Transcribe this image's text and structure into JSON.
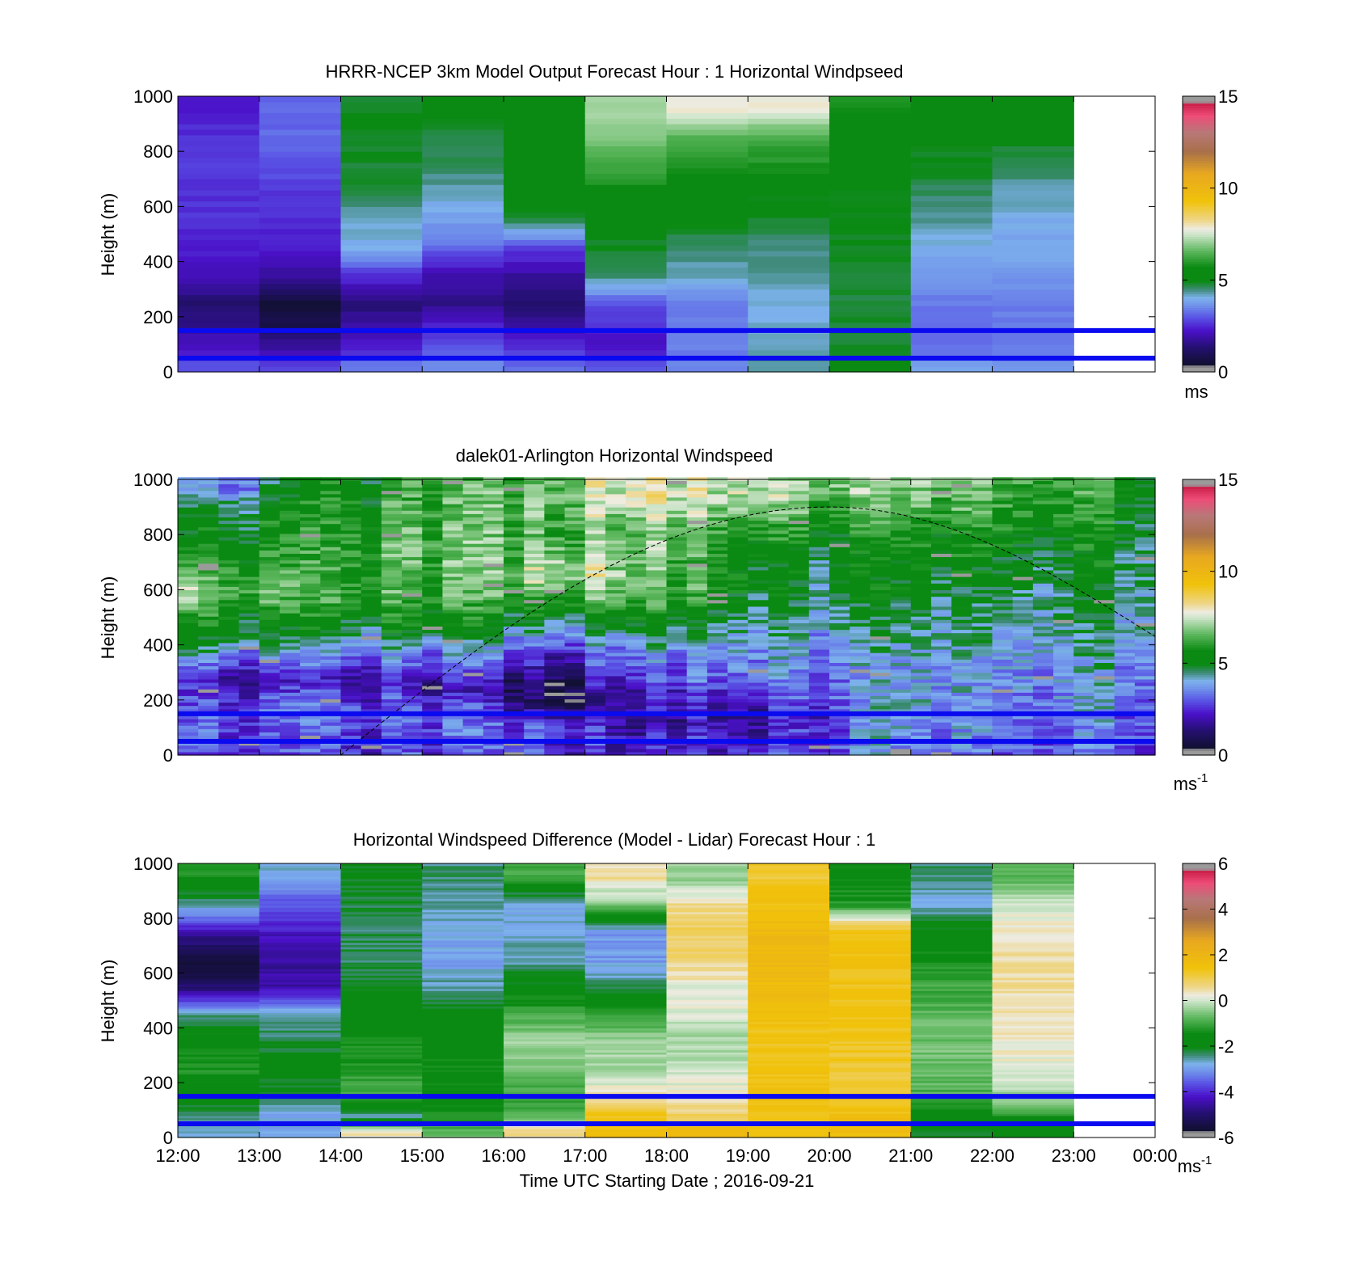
{
  "figure": {
    "xlabel": "Time UTC  Starting Date ; 2016-09-21",
    "x_ticks": [
      "12:00",
      "13:00",
      "14:00",
      "15:00",
      "16:00",
      "17:00",
      "18:00",
      "19:00",
      "20:00",
      "21:00",
      "22:00",
      "23:00",
      "00:00"
    ],
    "ylabel": "Height (m)",
    "y_ticks": [
      "0",
      "200",
      "400",
      "600",
      "800",
      "1000"
    ]
  },
  "chart_data": [
    {
      "type": "heatmap",
      "title": "HRRR-NCEP 3km Model Output   Forecast Hour : 1 Horizontal Windpseed",
      "xlabel": "",
      "ylabel": "Height (m)",
      "xlim": [
        "12:00",
        "00:00"
      ],
      "ylim": [
        0,
        1000
      ],
      "x_hours": [
        12,
        13,
        14,
        15,
        16,
        17,
        18,
        19,
        20,
        21,
        22
      ],
      "y_levels_m": [
        25,
        75,
        125,
        175,
        250,
        350,
        450,
        550,
        650,
        750,
        850,
        950
      ],
      "values_ms": [
        [
          3.0,
          2.4,
          2.0,
          1.6,
          1.3,
          2.1,
          2.4,
          2.6,
          2.6,
          2.7,
          2.6,
          2.4
        ],
        [
          2.8,
          2.0,
          1.4,
          0.8,
          0.6,
          1.8,
          2.3,
          2.5,
          2.7,
          3.0,
          3.2,
          3.2
        ],
        [
          3.4,
          2.6,
          2.2,
          1.8,
          1.4,
          2.6,
          4.0,
          4.2,
          4.8,
          4.8,
          4.9,
          4.9
        ],
        [
          3.6,
          3.2,
          2.8,
          2.4,
          1.6,
          1.9,
          3.2,
          3.8,
          4.2,
          4.6,
          4.8,
          5.0
        ],
        [
          3.2,
          2.7,
          2.4,
          1.7,
          1.2,
          1.8,
          2.8,
          4.8,
          5.0,
          5.2,
          5.2,
          5.5
        ],
        [
          2.9,
          2.4,
          2.2,
          2.6,
          3.0,
          4.6,
          4.9,
          5.1,
          5.7,
          6.3,
          6.8,
          7.2
        ],
        [
          3.4,
          3.4,
          3.4,
          3.4,
          3.5,
          4.2,
          4.5,
          5.0,
          5.4,
          5.9,
          6.5,
          7.8
        ],
        [
          4.4,
          4.3,
          4.2,
          4.1,
          4.1,
          4.3,
          4.5,
          4.8,
          5.0,
          5.9,
          6.3,
          7.8
        ],
        [
          5.0,
          4.9,
          4.8,
          4.8,
          4.8,
          4.8,
          4.9,
          5.0,
          5.0,
          5.1,
          5.3,
          5.8
        ],
        [
          3.8,
          3.3,
          3.3,
          3.3,
          3.4,
          3.7,
          4.0,
          4.4,
          4.6,
          4.9,
          5.0,
          5.2
        ],
        [
          3.6,
          3.3,
          3.4,
          3.4,
          3.4,
          3.7,
          3.9,
          4.0,
          4.3,
          4.6,
          5.0,
          5.1
        ]
      ],
      "overlay_lines_m": [
        50,
        150
      ],
      "colorbar": {
        "min": 0,
        "max": 15,
        "ticks": [
          "0",
          "5",
          "10",
          "15"
        ],
        "unit": "ms"
      }
    },
    {
      "type": "heatmap",
      "title": "dalek01-Arlington  Horizontal Windspeed",
      "xlabel": "",
      "ylabel": "Height (m)",
      "xlim": [
        "12:00",
        "00:00"
      ],
      "ylim": [
        0,
        1000
      ],
      "time_step_min": 15,
      "profile_anchors": [
        {
          "hour": 12.0,
          "levels": [
            [
              0,
              2.6
            ],
            [
              150,
              2.7
            ],
            [
              280,
              2.0
            ],
            [
              400,
              4.6
            ],
            [
              480,
              5.2
            ],
            [
              600,
              6.8
            ],
            [
              800,
              4.9
            ],
            [
              900,
              4.6
            ],
            [
              960,
              3.0
            ]
          ]
        },
        {
          "hour": 14.0,
          "levels": [
            [
              0,
              2.5
            ],
            [
              150,
              3.0
            ],
            [
              280,
              2.0
            ],
            [
              380,
              3.4
            ],
            [
              450,
              4.8
            ],
            [
              600,
              6.0
            ],
            [
              800,
              5.8
            ],
            [
              1000,
              5.4
            ]
          ]
        },
        {
          "hour": 15.5,
          "levels": [
            [
              0,
              2.8
            ],
            [
              150,
              3.0
            ],
            [
              250,
              1.6
            ],
            [
              350,
              3.2
            ],
            [
              450,
              5.0
            ],
            [
              600,
              6.4
            ],
            [
              800,
              6.5
            ],
            [
              1000,
              6.2
            ]
          ]
        },
        {
          "hour": 16.5,
          "levels": [
            [
              0,
              2.8
            ],
            [
              100,
              3.0
            ],
            [
              200,
              0.7
            ],
            [
              320,
              1.8
            ],
            [
              430,
              3.8
            ],
            [
              500,
              5.0
            ],
            [
              650,
              7.8
            ],
            [
              800,
              6.6
            ],
            [
              1000,
              6.8
            ]
          ]
        },
        {
          "hour": 17.5,
          "levels": [
            [
              0,
              2.0
            ],
            [
              150,
              1.6
            ],
            [
              250,
              2.2
            ],
            [
              380,
              3.3
            ],
            [
              480,
              5.0
            ],
            [
              600,
              6.8
            ],
            [
              800,
              6.6
            ],
            [
              950,
              7.5
            ]
          ]
        },
        {
          "hour": 19.0,
          "levels": [
            [
              0,
              2.6
            ],
            [
              150,
              2.0
            ],
            [
              250,
              3.2
            ],
            [
              400,
              4.0
            ],
            [
              550,
              5.0
            ],
            [
              700,
              5.2
            ],
            [
              800,
              6.0
            ],
            [
              950,
              7.4
            ]
          ]
        },
        {
          "hour": 20.5,
          "levels": [
            [
              0,
              3.2
            ],
            [
              150,
              3.6
            ],
            [
              300,
              3.4
            ],
            [
              450,
              4.2
            ],
            [
              600,
              4.8
            ],
            [
              800,
              5.2
            ],
            [
              950,
              6.6
            ]
          ]
        },
        {
          "hour": 22.0,
          "levels": [
            [
              0,
              3.0
            ],
            [
              150,
              3.5
            ],
            [
              300,
              3.6
            ],
            [
              450,
              4.2
            ],
            [
              600,
              4.6
            ],
            [
              800,
              5.6
            ],
            [
              950,
              6.4
            ]
          ]
        },
        {
          "hour": 23.75,
          "levels": [
            [
              0,
              3.3
            ],
            [
              150,
              3.6
            ],
            [
              300,
              4.0
            ],
            [
              450,
              4.6
            ],
            [
              600,
              5.0
            ],
            [
              800,
              5.4
            ],
            [
              950,
              5.8
            ]
          ]
        }
      ],
      "dashed_curve": {
        "start_hour": 14.0,
        "peak_hour": 20.0,
        "peak_height_m": 900,
        "end_hour": 24.0,
        "end_height_m": 430
      },
      "overlay_lines_m": [
        50,
        150
      ],
      "colorbar": {
        "min": 0,
        "max": 15,
        "ticks": [
          "0",
          "5",
          "10",
          "15"
        ],
        "unit": "ms",
        "unit_exp": "-1"
      }
    },
    {
      "type": "heatmap",
      "title": "Horizontal Windspeed Difference (Model - Lidar) Forecast Hour : 1",
      "xlabel": "Time UTC  Starting Date ; 2016-09-21",
      "ylabel": "Height (m)",
      "xlim": [
        "12:00",
        "00:00"
      ],
      "ylim": [
        0,
        1000
      ],
      "x_hours": [
        12,
        13,
        14,
        15,
        16,
        17,
        18,
        19,
        20,
        21,
        22
      ],
      "y_levels_m": [
        25,
        75,
        150,
        250,
        350,
        450,
        550,
        650,
        750,
        850,
        950
      ],
      "values_ms": [
        [
          -2.6,
          -2.5,
          -1.8,
          -1.3,
          -1.6,
          -2.4,
          -5.0,
          -5.6,
          -4.4,
          -2.6,
          -1.2
        ],
        [
          -2.8,
          -2.9,
          -2.3,
          -1.8,
          -2.2,
          -2.6,
          -4.4,
          -4.6,
          -4.2,
          -3.6,
          -2.8
        ],
        [
          0.4,
          -2.6,
          -0.8,
          -1.2,
          -1.4,
          -1.8,
          -2.0,
          -2.3,
          -2.3,
          -2.2,
          -2.0
        ],
        [
          -0.7,
          -1.3,
          -1.5,
          -1.5,
          -1.6,
          -1.8,
          -2.5,
          -3.0,
          -2.8,
          -2.6,
          -2.4
        ],
        [
          0.6,
          -0.9,
          -1.0,
          -0.6,
          -0.3,
          -1.0,
          -1.8,
          -2.6,
          -2.7,
          -2.9,
          -1.0
        ],
        [
          1.6,
          1.4,
          0.5,
          -0.4,
          -0.2,
          -1.2,
          -2.3,
          -3.0,
          -3.0,
          -0.5,
          0.5
        ],
        [
          1.7,
          0.9,
          0.4,
          -0.1,
          -0.3,
          0.1,
          0.2,
          0.7,
          0.9,
          0.6,
          -0.4
        ],
        [
          1.5,
          1.2,
          1.6,
          1.4,
          1.3,
          1.6,
          1.7,
          1.8,
          1.8,
          1.5,
          1.2
        ],
        [
          1.6,
          1.6,
          1.1,
          1.2,
          1.3,
          1.4,
          1.4,
          1.5,
          1.5,
          -1.2,
          -1.6
        ],
        [
          -2.0,
          -1.6,
          -0.9,
          -0.6,
          -0.6,
          -0.8,
          -1.0,
          -1.4,
          -1.8,
          -2.8,
          -2.4
        ],
        [
          -2.0,
          -1.3,
          -0.3,
          0.2,
          0.3,
          0.4,
          0.5,
          0.5,
          0.4,
          0.0,
          -0.9
        ]
      ],
      "overlay_lines_m": [
        50,
        150
      ],
      "colorbar": {
        "min": -6,
        "max": 6,
        "ticks": [
          "-6",
          "-4",
          "-2",
          "0",
          "2",
          "4",
          "6"
        ],
        "unit": "ms",
        "unit_exp": "-1"
      }
    }
  ],
  "colors": {
    "overlay_line": "#0a0af0",
    "colormap": [
      [
        0.0,
        "#9a9a9a"
      ],
      [
        0.02,
        "#9a9a9a"
      ],
      [
        0.025,
        "#10102e"
      ],
      [
        0.09,
        "#241070"
      ],
      [
        0.15,
        "#4a10c8"
      ],
      [
        0.2,
        "#5a55e6"
      ],
      [
        0.24,
        "#6f8fea"
      ],
      [
        0.27,
        "#7db2ec"
      ],
      [
        0.3,
        "#3e8a78"
      ],
      [
        0.33,
        "#0a8a12"
      ],
      [
        0.38,
        "#0a8a12"
      ],
      [
        0.44,
        "#5fb85f"
      ],
      [
        0.5,
        "#cfe6cc"
      ],
      [
        0.52,
        "#eeebe0"
      ],
      [
        0.55,
        "#eed68a"
      ],
      [
        0.62,
        "#f0c20a"
      ],
      [
        0.72,
        "#e8a820"
      ],
      [
        0.8,
        "#a8704a"
      ],
      [
        0.87,
        "#b87878"
      ],
      [
        0.93,
        "#ee4c78"
      ],
      [
        0.975,
        "#c81e48"
      ],
      [
        0.98,
        "#9a9a9a"
      ],
      [
        1.0,
        "#9a9a9a"
      ]
    ]
  }
}
